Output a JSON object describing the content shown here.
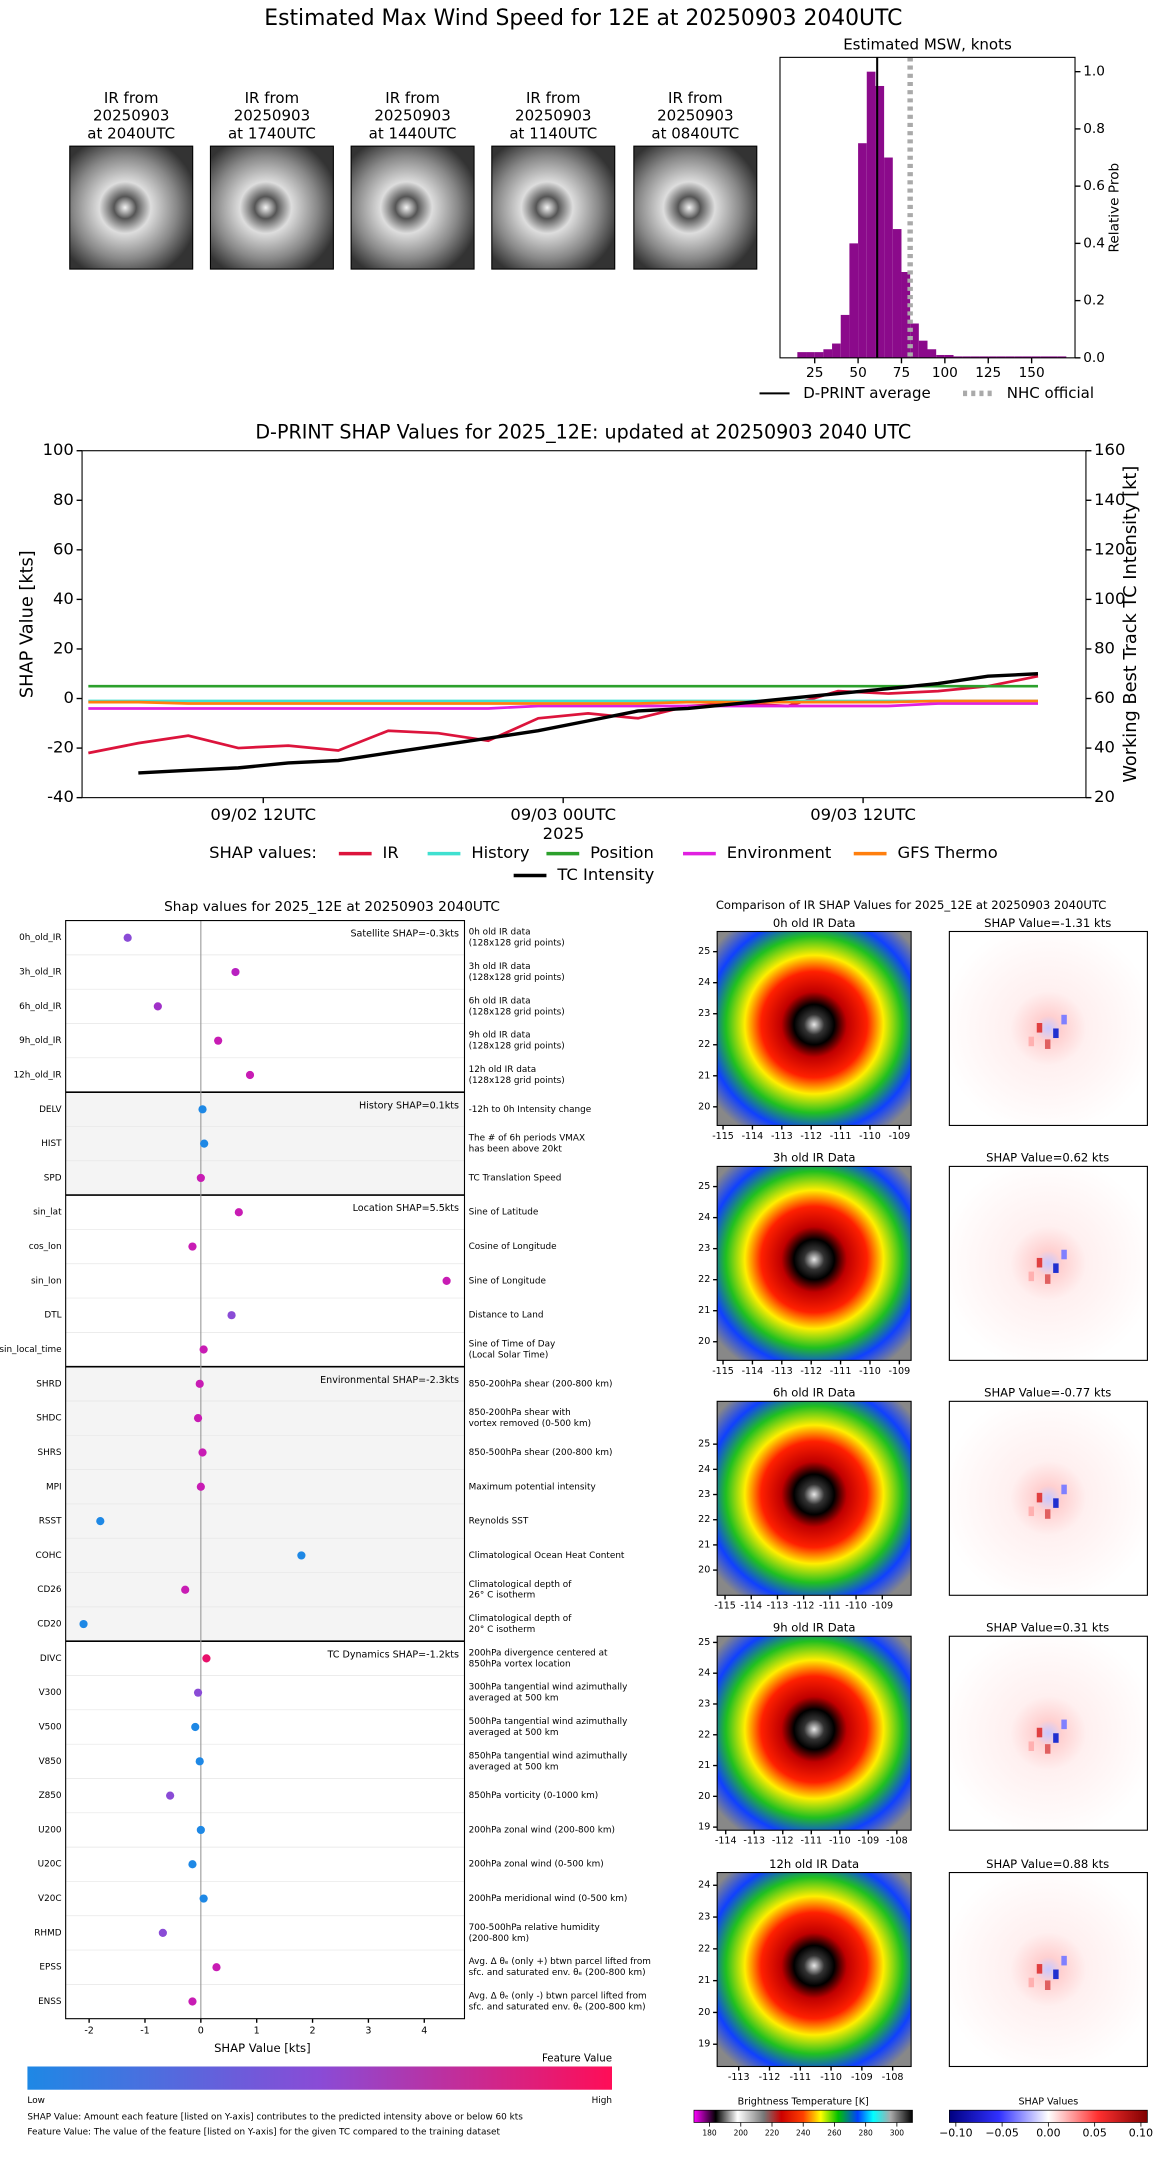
{
  "header": {
    "title": "Estimated Max Wind Speed for 12E at 20250903 2040UTC"
  },
  "thumbnails": [
    [
      "IR from",
      "20250903",
      "at 2040UTC"
    ],
    [
      "IR from",
      "20250903",
      "at 1740UTC"
    ],
    [
      "IR from",
      "20250903",
      "at 1440UTC"
    ],
    [
      "IR from",
      "20250903",
      "at 1140UTC"
    ],
    [
      "IR from",
      "20250903",
      "at 0840UTC"
    ]
  ],
  "chart_data": [
    {
      "type": "histogram",
      "title": "Estimated MSW, knots",
      "ylabel": "Relative Prob",
      "color": "#8b0a8b",
      "bins": [
        15,
        20,
        25,
        30,
        35,
        40,
        45,
        50,
        55,
        60,
        65,
        70,
        75,
        80,
        85,
        90,
        95,
        100,
        105,
        110,
        115,
        120,
        125,
        130,
        135,
        140,
        145,
        150,
        155,
        160,
        165,
        170
      ],
      "values": [
        0.02,
        0.02,
        0.02,
        0.03,
        0.05,
        0.15,
        0.4,
        0.75,
        1.0,
        0.95,
        0.7,
        0.45,
        0.3,
        0.12,
        0.06,
        0.03,
        0.01,
        0.01,
        0.005,
        0.005,
        0.005,
        0.005,
        0.005,
        0.005,
        0.005,
        0.005,
        0.005,
        0.005,
        0.005,
        0.005,
        0.005
      ],
      "xlim": [
        5,
        175
      ],
      "xticks": [
        25,
        50,
        75,
        100,
        125,
        150
      ],
      "ylim": [
        0,
        1.05
      ],
      "yticks": [
        {
          "value": 0,
          "label": "0.0"
        },
        {
          "value": 0.2,
          "label": "0.2"
        },
        {
          "value": 0.4,
          "label": "0.4"
        },
        {
          "value": 0.6,
          "label": "0.6"
        },
        {
          "value": 0.8,
          "label": "0.8"
        },
        {
          "value": 1,
          "label": "1.0"
        }
      ],
      "reference_lines": [
        {
          "name": "D-PRINT average",
          "value": 61,
          "color": "#000000",
          "style": "solid"
        },
        {
          "name": "NHC official",
          "value": 80,
          "color": "#aaaaaa",
          "style": "dotted"
        }
      ]
    },
    {
      "type": "line",
      "title": "D-PRINT SHAP Values for 2025_12E: updated at 20250903 2040 UTC",
      "xlabel": "2025",
      "ylabel": "SHAP Value [kts]",
      "y2label": "Working Best Track TC Intensity [kt]",
      "legend_title": "SHAP values:",
      "x": [
        "2025-09-02 05:00",
        "2025-09-02 07:00",
        "2025-09-02 09:00",
        "2025-09-02 11:00",
        "2025-09-02 13:00",
        "2025-09-02 15:00",
        "2025-09-02 17:00",
        "2025-09-02 19:00",
        "2025-09-02 21:00",
        "2025-09-02 23:00",
        "2025-09-03 01:00",
        "2025-09-03 03:00",
        "2025-09-03 05:00",
        "2025-09-03 07:00",
        "2025-09-03 09:00",
        "2025-09-03 11:00",
        "2025-09-03 13:00",
        "2025-09-03 15:00",
        "2025-09-03 17:00",
        "2025-09-03 19:00"
      ],
      "xlim": [
        "2025-09-02 04:45",
        "2025-09-03 20:55"
      ],
      "xticks": [
        {
          "value": "2025-09-02 12:00",
          "label": "09/02 12UTC"
        },
        {
          "value": "2025-09-03 00:00",
          "label": "09/03 00UTC"
        },
        {
          "value": "2025-09-03 12:00",
          "label": "09/03 12UTC"
        }
      ],
      "ylim": [
        -40,
        100
      ],
      "yticks": [
        -40,
        -20,
        0,
        20,
        40,
        60,
        80,
        100
      ],
      "y2lim": [
        20,
        160
      ],
      "y2ticks": [
        20,
        40,
        60,
        80,
        100,
        120,
        140,
        160
      ],
      "series": [
        {
          "name": "IR",
          "color": "#dc143c",
          "values": [
            -22,
            -18,
            -15,
            -20,
            -19,
            -21,
            -13,
            -14,
            -17,
            -8,
            -6,
            -8,
            -3,
            -2,
            -3,
            3,
            2,
            3,
            5,
            9
          ]
        },
        {
          "name": "History",
          "color": "#40e0d0",
          "values": [
            -1,
            -1,
            -1,
            -1,
            -1,
            -1,
            -1,
            -1,
            -1,
            -1,
            -1,
            -1,
            -1,
            -1,
            -1,
            -1,
            -1,
            -1,
            -1,
            -1
          ]
        },
        {
          "name": "Position",
          "color": "#2ca02c",
          "values": [
            5,
            5,
            5,
            5,
            5,
            5,
            5,
            5,
            5,
            5,
            5,
            5,
            5,
            5,
            5,
            5,
            5,
            5,
            5,
            5
          ]
        },
        {
          "name": "Environment",
          "color": "#e020e0",
          "values": [
            -4,
            -4,
            -4,
            -4,
            -4,
            -4,
            -4,
            -4,
            -4,
            -3,
            -3,
            -3,
            -3,
            -3,
            -3,
            -3,
            -3,
            -2,
            -2,
            -2
          ]
        },
        {
          "name": "GFS Thermo",
          "color": "#ff7f0e",
          "values": [
            -1.5,
            -1.5,
            -2,
            -2,
            -2,
            -2,
            -2,
            -2,
            -2,
            -2,
            -2,
            -2,
            -1.5,
            -1.5,
            -1.5,
            -1.5,
            -1.5,
            -1,
            -1,
            -1
          ]
        },
        {
          "name": "TC Intensity",
          "color": "#000000",
          "axis": "y2",
          "values": [
            null,
            30,
            31,
            32,
            34,
            35,
            38,
            41,
            44,
            47,
            51,
            55,
            56,
            58,
            60,
            62,
            64,
            66,
            69,
            70
          ]
        }
      ]
    },
    {
      "type": "dot",
      "title": "Shap values for 2025_12E at 20250903 2040UTC",
      "xlabel": "SHAP Value [kts]",
      "xlim": [
        -2.42,
        4.72
      ],
      "xticks": [
        -2,
        -1,
        0,
        1,
        2,
        3,
        4
      ],
      "groups": [
        {
          "label": "Satellite SHAP=-0.3kts",
          "shaded": false,
          "names": [
            "0h_old_IR",
            "3h_old_IR",
            "6h_old_IR",
            "9h_old_IR",
            "12h_old_IR"
          ],
          "descriptions": [
            [
              "0h old IR data",
              "(128x128 grid points)"
            ],
            [
              "3h old IR data",
              "(128x128 grid points)"
            ],
            [
              "6h old IR data",
              "(128x128 grid points)"
            ],
            [
              "9h old IR data",
              "(128x128 grid points)"
            ],
            [
              "12h old IR data",
              "(128x128 grid points)"
            ]
          ],
          "values": [
            -1.31,
            0.62,
            -0.77,
            0.31,
            0.88
          ],
          "colors": [
            "#8a4bd6",
            "#b820c0",
            "#a030c8",
            "#c81cb4",
            "#c81cb4"
          ]
        },
        {
          "label": "History SHAP=0.1kts",
          "shaded": true,
          "names": [
            "DELV",
            "HIST",
            "SPD"
          ],
          "descriptions": [
            [
              "-12h to 0h Intensity change"
            ],
            [
              "The # of 6h periods VMAX",
              "has been above 20kt"
            ],
            [
              "TC Translation Speed"
            ]
          ],
          "values": [
            0.03,
            0.06,
            0.0
          ],
          "colors": [
            "#1e88e5",
            "#1e88e5",
            "#c81cb4"
          ]
        },
        {
          "label": "Location SHAP=5.5kts",
          "shaded": false,
          "names": [
            "sin_lat",
            "cos_lon",
            "sin_lon",
            "DTL",
            "sin_local_time"
          ],
          "descriptions": [
            [
              "Sine of Latitude"
            ],
            [
              "Cosine of Longitude"
            ],
            [
              "Sine of Longitude"
            ],
            [
              "Distance to Land"
            ],
            [
              "Sine of Time of Day",
              "(Local Solar Time)"
            ]
          ],
          "values": [
            0.68,
            -0.15,
            4.4,
            0.55,
            0.05
          ],
          "colors": [
            "#c81cb4",
            "#c81cb4",
            "#c81cb4",
            "#8a4bd6",
            "#c81cb4"
          ]
        },
        {
          "label": "Environmental SHAP=-2.3kts",
          "shaded": true,
          "names": [
            "SHRD",
            "SHDC",
            "SHRS",
            "MPI",
            "RSST",
            "COHC",
            "CD26",
            "CD20"
          ],
          "descriptions": [
            [
              "850-200hPa shear (200-800 km)"
            ],
            [
              "850-200hPa shear with",
              "vortex removed (0-500 km)"
            ],
            [
              "850-500hPa shear (200-800 km)"
            ],
            [
              "Maximum potential intensity"
            ],
            [
              "Reynolds SST"
            ],
            [
              "Climatological Ocean Heat Content"
            ],
            [
              "Climatological depth of",
              "26° C isotherm"
            ],
            [
              "Climatological depth of",
              "20° C isotherm"
            ]
          ],
          "values": [
            -0.02,
            -0.05,
            0.03,
            0.0,
            -1.8,
            1.8,
            -0.28,
            -2.1
          ],
          "colors": [
            "#c81cb4",
            "#c81cb4",
            "#c81cb4",
            "#c81cb4",
            "#1e88e5",
            "#1e88e5",
            "#c81cb4",
            "#1e88e5"
          ]
        },
        {
          "label": "TC Dynamics SHAP=-1.2kts",
          "shaded": false,
          "names": [
            "DIVC",
            "V300",
            "V500",
            "V850",
            "Z850",
            "U200",
            "U20C",
            "V20C",
            "RHMD",
            "EPSS",
            "ENSS"
          ],
          "descriptions": [
            [
              "200hPa divergence centered at",
              "850hPa vortex location"
            ],
            [
              "300hPa tangential wind azimuthally",
              "averaged at 500 km"
            ],
            [
              "500hPa tangential wind azimuthally",
              "averaged at 500 km"
            ],
            [
              "850hPa tangential wind azimuthally",
              "averaged at 500 km"
            ],
            [
              "850hPa vorticity (0-1000 km)"
            ],
            [
              "200hPa zonal wind (200-800 km)"
            ],
            [
              "200hPa zonal wind (0-500 km)"
            ],
            [
              "200hPa meridional wind (0-500 km)"
            ],
            [
              "700-500hPa relative humidity",
              "(200-800 km)"
            ],
            [
              "Avg. Δ θₑ (only +) btwn parcel lifted from",
              "sfc. and saturated env. θₑ (200-800 km)"
            ],
            [
              "Avg. Δ θₑ (only -) btwn parcel lifted from",
              "sfc. and saturated env. θₑ (200-800 km)"
            ]
          ],
          "values": [
            0.1,
            -0.05,
            -0.1,
            -0.02,
            -0.55,
            0.0,
            -0.15,
            0.05,
            -0.68,
            0.28,
            -0.15
          ],
          "colors": [
            "#e8106a",
            "#8a4bd6",
            "#1e88e5",
            "#1e88e5",
            "#8a4bd6",
            "#1e88e5",
            "#1e88e5",
            "#1e88e5",
            "#8a4bd6",
            "#c81cb4",
            "#c81cb4"
          ]
        }
      ],
      "colorbar": {
        "title": "Feature Value",
        "low": "Low",
        "high": "High"
      },
      "notes": [
        "SHAP Value: Amount each feature [listed on Y-axis] contributes to the predicted intensity above or below 60 kts",
        "Feature Value: The value of the feature [listed on Y-axis] for the given TC compared to the training dataset"
      ]
    }
  ],
  "ir_comparison": {
    "title": "Comparison of IR SHAP Values for 2025_12E at 20250903 2040UTC",
    "panels": [
      {
        "ir_title": "0h old IR Data",
        "shap_title": "SHAP Value=-1.31 kts",
        "xlim": [
          -115.2,
          -108.6
        ],
        "ylim": [
          19.4,
          25.65
        ],
        "xticks": [
          -115,
          -114,
          -113,
          -112,
          -111,
          -110,
          -109
        ],
        "yticks": [
          20,
          21,
          22,
          23,
          24,
          25
        ]
      },
      {
        "ir_title": "3h old IR Data",
        "shap_title": "SHAP Value=0.62 kts",
        "xlim": [
          -115.2,
          -108.6
        ],
        "ylim": [
          19.4,
          25.65
        ],
        "xticks": [
          -115,
          -114,
          -113,
          -112,
          -111,
          -110,
          -109
        ],
        "yticks": [
          20,
          21,
          22,
          23,
          24,
          25
        ]
      },
      {
        "ir_title": "6h old IR Data",
        "shap_title": "SHAP Value=-0.77 kts",
        "xlim": [
          -115.3,
          -107.9
        ],
        "ylim": [
          19.0,
          26.7
        ],
        "xticks": [
          -115,
          -114,
          -113,
          -112,
          -111,
          -110,
          -109
        ],
        "yticks": [
          20,
          21,
          22,
          23,
          24,
          25
        ]
      },
      {
        "ir_title": "9h old IR Data",
        "shap_title": "SHAP Value=0.31 kts",
        "xlim": [
          -114.3,
          -107.5
        ],
        "ylim": [
          18.9,
          25.2
        ],
        "xticks": [
          -114,
          -113,
          -112,
          -111,
          -110,
          -109,
          -108
        ],
        "yticks": [
          19,
          20,
          21,
          22,
          23,
          24,
          25
        ]
      },
      {
        "ir_title": "12h old IR Data",
        "shap_title": "SHAP Value=0.88 kts",
        "xlim": [
          -113.7,
          -107.4
        ],
        "ylim": [
          18.3,
          24.4
        ],
        "xticks": [
          -113,
          -112,
          -111,
          -110,
          -109,
          -108
        ],
        "yticks": [
          19,
          20,
          21,
          22,
          23,
          24
        ]
      }
    ],
    "bt_colorbar": {
      "title": "Brightness Temperature [K]",
      "lim": [
        170,
        310
      ],
      "ticks": [
        180,
        200,
        220,
        240,
        260,
        280,
        300
      ]
    },
    "shap_colorbar": {
      "title": "SHAP Values",
      "lim": [
        -0.107,
        0.107
      ],
      "ticks": [
        {
          "value": -0.1,
          "label": "−0.10"
        },
        {
          "value": -0.05,
          "label": "−0.05"
        },
        {
          "value": 0,
          "label": "0.00"
        },
        {
          "value": 0.05,
          "label": "0.05"
        },
        {
          "value": 0.1,
          "label": "0.10"
        }
      ]
    }
  }
}
